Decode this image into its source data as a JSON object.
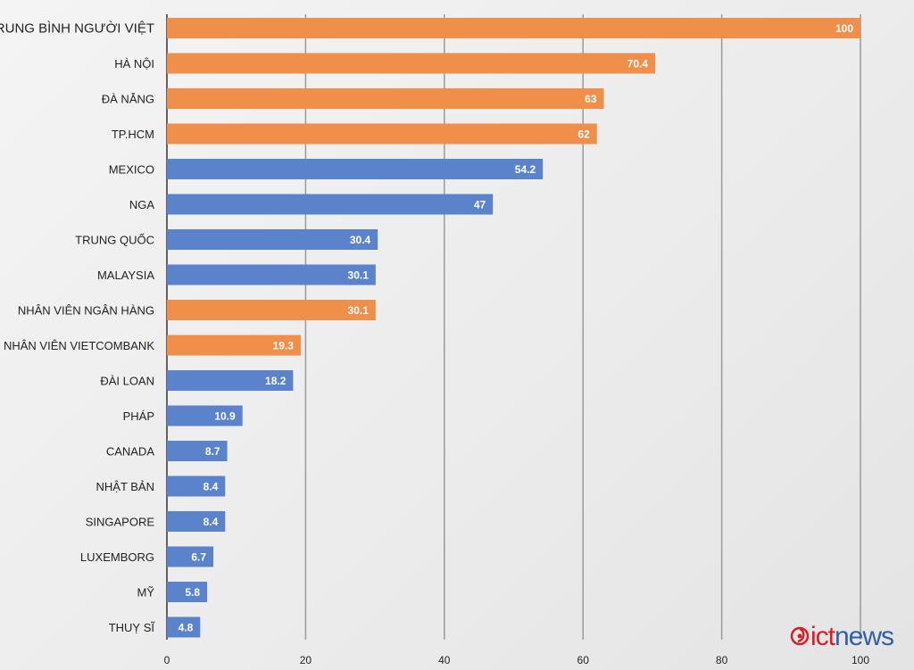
{
  "chart_data": {
    "type": "bar",
    "orientation": "horizontal",
    "title": "",
    "xlabel": "",
    "ylabel": "",
    "xlim": [
      0,
      100
    ],
    "ticks": [
      0,
      20,
      40,
      60,
      80,
      100
    ],
    "grid": true,
    "colors": {
      "highlight": "#ef8f4a",
      "base": "#5a83cc",
      "grid": "#9a9a9a",
      "axis": "#333333"
    },
    "bars": [
      {
        "label": "TRUNG BÌNH NGƯỜI VIỆT",
        "value": 100,
        "highlight": true
      },
      {
        "label": "HÀ NỘI",
        "value": 70.4,
        "highlight": true
      },
      {
        "label": "ĐÀ NẴNG",
        "value": 63,
        "highlight": true
      },
      {
        "label": "TP.HCM",
        "value": 62,
        "highlight": true
      },
      {
        "label": "MEXICO",
        "value": 54.2,
        "highlight": false
      },
      {
        "label": "NGA",
        "value": 47,
        "highlight": false
      },
      {
        "label": "TRUNG QUỐC",
        "value": 30.4,
        "highlight": false
      },
      {
        "label": "MALAYSIA",
        "value": 30.1,
        "highlight": false
      },
      {
        "label": "NHÂN VIÊN NGÂN HÀNG",
        "value": 30.1,
        "highlight": true
      },
      {
        "label": "NHÂN VIÊN VIETCOMBANK",
        "value": 19.3,
        "highlight": true
      },
      {
        "label": "ĐÀI LOAN",
        "value": 18.2,
        "highlight": false
      },
      {
        "label": "PHÁP",
        "value": 10.9,
        "highlight": false
      },
      {
        "label": "CANADA",
        "value": 8.7,
        "highlight": false
      },
      {
        "label": "NHẬT BẢN",
        "value": 8.4,
        "highlight": false
      },
      {
        "label": "SINGAPORE",
        "value": 8.4,
        "highlight": false
      },
      {
        "label": "LUXEMBORG",
        "value": 6.7,
        "highlight": false
      },
      {
        "label": "MỸ",
        "value": 5.8,
        "highlight": false
      },
      {
        "label": "THUỴ SĨ",
        "value": 4.8,
        "highlight": false
      }
    ]
  },
  "logo": {
    "prefix": "ict",
    "suffix": "news",
    "icon": "ictnews-swirl-icon",
    "prefix_color": "#d42027",
    "suffix_color": "#2f5fa8"
  }
}
